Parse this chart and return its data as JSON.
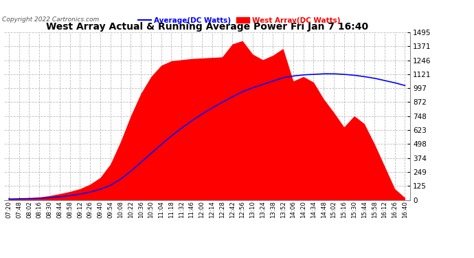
{
  "title": "West Array Actual & Running Average Power Fri Jan 7 16:40",
  "copyright": "Copyright 2022 Cartronics.com",
  "legend_avg": "Average(DC Watts)",
  "legend_west": "West Array(DC Watts)",
  "ymin": 0.0,
  "ymax": 1495.2,
  "yticks": [
    0.0,
    124.6,
    249.2,
    373.8,
    498.4,
    623.0,
    747.6,
    872.2,
    996.8,
    1121.4,
    1246.0,
    1370.6,
    1495.2
  ],
  "bg_color": "#ffffff",
  "grid_color": "#bbbbbb",
  "fill_color": "#ff0000",
  "avg_line_color": "#0000ff",
  "title_color": "#000000",
  "copyright_color": "#000000",
  "avg_legend_color": "#0000ff",
  "west_legend_color": "#ff0000",
  "xtick_labels": [
    "07:20",
    "07:48",
    "08:02",
    "08:16",
    "08:30",
    "08:44",
    "08:58",
    "09:12",
    "09:26",
    "09:40",
    "09:54",
    "10:08",
    "10:22",
    "10:36",
    "10:50",
    "11:04",
    "11:18",
    "11:32",
    "11:46",
    "12:00",
    "12:14",
    "12:28",
    "12:42",
    "12:56",
    "13:10",
    "13:24",
    "13:38",
    "13:52",
    "14:06",
    "14:20",
    "14:34",
    "14:48",
    "15:02",
    "15:16",
    "15:30",
    "15:44",
    "15:58",
    "16:12",
    "16:26",
    "16:40"
  ],
  "west_array_values": [
    8,
    12,
    18,
    25,
    38,
    55,
    75,
    100,
    140,
    200,
    320,
    520,
    750,
    950,
    1100,
    1200,
    1240,
    1250,
    1260,
    1265,
    1270,
    1275,
    1390,
    1420,
    1300,
    1250,
    1290,
    1350,
    1060,
    1100,
    1050,
    900,
    780,
    650,
    750,
    680,
    500,
    300,
    100,
    20
  ],
  "avg_values": [
    8,
    10,
    12,
    15,
    20,
    28,
    38,
    52,
    70,
    95,
    130,
    185,
    255,
    335,
    415,
    495,
    570,
    640,
    705,
    765,
    820,
    870,
    920,
    965,
    1000,
    1030,
    1060,
    1090,
    1105,
    1115,
    1120,
    1125,
    1125,
    1120,
    1112,
    1100,
    1085,
    1065,
    1045,
    1020
  ]
}
